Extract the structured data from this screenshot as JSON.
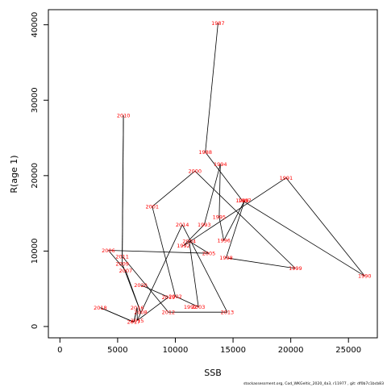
{
  "chart_data": {
    "type": "scatter",
    "xlabel": "SSB",
    "ylabel": "R(age 1)",
    "xlim": [
      -1000,
      27500
    ],
    "ylim": [
      -1500,
      42000
    ],
    "x_ticks": [
      0,
      5000,
      10000,
      15000,
      20000,
      25000
    ],
    "y_ticks": [
      0,
      10000,
      20000,
      30000,
      40000
    ],
    "connected": true,
    "line_color": "#000000",
    "label_color": "#ff0000",
    "grid": false,
    "footer": "stockassessment.org, Cod_WKGeltic_2020_4a3, r11977 , git: df0b7c1bcb83",
    "points": [
      {
        "year": "1987",
        "x": 13700,
        "y": 40200
      },
      {
        "year": "1988",
        "x": 12600,
        "y": 23100
      },
      {
        "year": "1989",
        "x": 15800,
        "y": 16700
      },
      {
        "year": "1990",
        "x": 26400,
        "y": 6700
      },
      {
        "year": "1991",
        "x": 19600,
        "y": 19700
      },
      {
        "year": "1992",
        "x": 10700,
        "y": 10700
      },
      {
        "year": "1993",
        "x": 12500,
        "y": 13500
      },
      {
        "year": "1994",
        "x": 13900,
        "y": 21500
      },
      {
        "year": "1995",
        "x": 13800,
        "y": 14500
      },
      {
        "year": "1996",
        "x": 14200,
        "y": 11400
      },
      {
        "year": "1997",
        "x": 16000,
        "y": 16700
      },
      {
        "year": "1998",
        "x": 14400,
        "y": 9100
      },
      {
        "year": "1999",
        "x": 20400,
        "y": 7700
      },
      {
        "year": "2000",
        "x": 11700,
        "y": 20600
      },
      {
        "year": "2001",
        "x": 8000,
        "y": 15900
      },
      {
        "year": "2002",
        "x": 10000,
        "y": 4000
      },
      {
        "year": "2003",
        "x": 12000,
        "y": 2600
      },
      {
        "year": "2004",
        "x": 11200,
        "y": 11300
      },
      {
        "year": "2005",
        "x": 12900,
        "y": 9700
      },
      {
        "year": "2006",
        "x": 4200,
        "y": 10100
      },
      {
        "year": "2007",
        "x": 5700,
        "y": 7400
      },
      {
        "year": "2008",
        "x": 7000,
        "y": 1900
      },
      {
        "year": "2009",
        "x": 5400,
        "y": 8300
      },
      {
        "year": "2010",
        "x": 5500,
        "y": 28000
      },
      {
        "year": "2011",
        "x": 5400,
        "y": 9300
      },
      {
        "year": "2012",
        "x": 9400,
        "y": 1900
      },
      {
        "year": "2013",
        "x": 14500,
        "y": 1900
      },
      {
        "year": "2014",
        "x": 10600,
        "y": 13500
      },
      {
        "year": "2015",
        "x": 6700,
        "y": 800
      },
      {
        "year": "2016",
        "x": 6700,
        "y": 2500
      },
      {
        "year": "2017",
        "x": 6400,
        "y": 600
      },
      {
        "year": "2018",
        "x": 3500,
        "y": 2500
      },
      {
        "year": "2019",
        "x": 9400,
        "y": 3900
      },
      {
        "year": "2020",
        "x": 7000,
        "y": 5500
      },
      {
        "year": "1992b",
        "x": 11300,
        "y": 2600
      }
    ],
    "path_order": [
      "1987",
      "1988",
      "1989",
      "1990",
      "1991",
      "1992",
      "1993",
      "1994",
      "1995",
      "1996",
      "1997",
      "1998",
      "1999",
      "2000",
      "2001",
      "2002",
      "2003",
      "2004",
      "2005",
      "2006",
      "2007",
      "2008",
      "2009",
      "2010",
      "2011",
      "2012",
      "2013",
      "2014",
      "2015",
      "2016",
      "2017",
      "2018"
    ]
  }
}
